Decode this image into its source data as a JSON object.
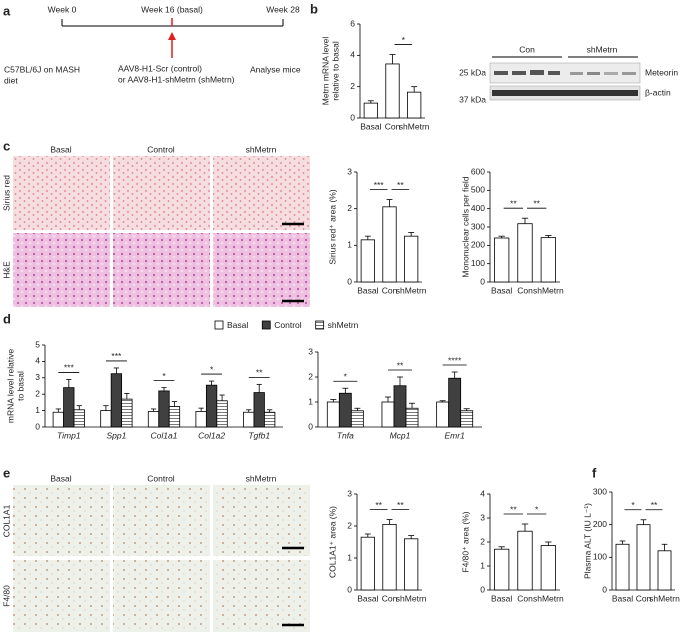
{
  "panels": [
    "a",
    "b",
    "c",
    "d",
    "e",
    "f"
  ],
  "timeline": {
    "weeks": [
      "Week 0",
      "Week 16 (basal)",
      "Week 28"
    ],
    "diet": [
      "C57BL/6J on MASH",
      "diet"
    ],
    "treatment": [
      "AAV8-H1-Scr (control)",
      "or AAV8-H1-shMetrn (shMetrn)"
    ],
    "end": "Analyse mice"
  },
  "blot": {
    "groups": [
      "Con",
      "shMetrn"
    ],
    "proteins": [
      "Meteorin",
      "β-actin"
    ],
    "markers": [
      "25 kDa",
      "37 kDa"
    ]
  },
  "images_c": {
    "columns": [
      "Basal",
      "Control",
      "shMetrn"
    ],
    "rows": [
      "Sirius red",
      "H&E"
    ]
  },
  "images_e": {
    "columns": [
      "Basal",
      "Control",
      "shMetrn"
    ],
    "rows": [
      "COL1A1",
      "F4/80"
    ]
  },
  "chart_data": [
    {
      "type": "bar",
      "ylabel": [
        "Metrn mRNA level",
        "relative to basal"
      ],
      "categories": [
        "Basal",
        "Con",
        "shMetrn"
      ],
      "values": [
        0.95,
        3.45,
        1.65
      ],
      "errors": [
        0.15,
        0.6,
        0.35
      ],
      "color": "#ffffff",
      "ylim": [
        0,
        6
      ],
      "yticks": [
        0,
        2,
        4,
        6
      ],
      "significance": [
        {
          "label": "*",
          "pair": [
            "Con",
            "shMetrn"
          ]
        }
      ]
    },
    {
      "type": "bar",
      "ylabel": "Sirius red⁺ area (%)",
      "categories": [
        "Basal",
        "Con",
        "shMetrn"
      ],
      "values": [
        1.15,
        2.05,
        1.25
      ],
      "errors": [
        0.1,
        0.2,
        0.1
      ],
      "color": "#ffffff",
      "ylim": [
        0,
        3
      ],
      "yticks": [
        0,
        1,
        2,
        3
      ],
      "significance": [
        {
          "label": "***",
          "pair": [
            "Basal",
            "Con"
          ]
        },
        {
          "label": "**",
          "pair": [
            "Con",
            "shMetrn"
          ]
        }
      ]
    },
    {
      "type": "bar",
      "ylabel": "Mononuclear cells per field",
      "categories": [
        "Basal",
        "Con",
        "shMetrn"
      ],
      "values": [
        240,
        318,
        242
      ],
      "errors": [
        10,
        30,
        12
      ],
      "color": "#ffffff",
      "ylim": [
        0,
        600
      ],
      "yticks": [
        0,
        100,
        200,
        300,
        400,
        500,
        600
      ],
      "significance": [
        {
          "label": "**",
          "pair": [
            "Basal",
            "Con"
          ]
        },
        {
          "label": "**",
          "pair": [
            "Con",
            "shMetrn"
          ]
        }
      ]
    },
    {
      "type": "grouped_bar",
      "ylabel": [
        "mRNA level relative",
        "to basal"
      ],
      "categories": [
        "Timp1",
        "Spp1",
        "Col1a1",
        "Col1a2",
        "Tgfb1"
      ],
      "series": [
        {
          "name": "Basal",
          "color": "#ffffff",
          "values": [
            0.9,
            1.0,
            0.95,
            0.95,
            0.9
          ],
          "errors": [
            0.2,
            0.3,
            0.15,
            0.2,
            0.15
          ]
        },
        {
          "name": "Control",
          "color": "#404040",
          "values": [
            2.4,
            3.25,
            2.2,
            2.55,
            2.1
          ],
          "errors": [
            0.5,
            0.35,
            0.2,
            0.25,
            0.5
          ]
        },
        {
          "name": "shMetrn",
          "color": "#ffffff",
          "pattern": "stripes",
          "values": [
            1.05,
            1.7,
            1.25,
            1.6,
            0.9
          ],
          "errors": [
            0.25,
            0.35,
            0.3,
            0.35,
            0.15
          ]
        }
      ],
      "ylim": [
        0,
        5
      ],
      "yticks": [
        0,
        1,
        2,
        3,
        4,
        5
      ],
      "significance": [
        "***",
        "***",
        "*",
        "*",
        "**"
      ],
      "legend": "top"
    },
    {
      "type": "grouped_bar",
      "categories": [
        "Tnfa",
        "Mcp1",
        "Emr1"
      ],
      "series": [
        {
          "color": "#ffffff",
          "values": [
            1.0,
            1.0,
            1.0
          ],
          "errors": [
            0.1,
            0.2,
            0.05
          ]
        },
        {
          "color": "#404040",
          "values": [
            1.35,
            1.65,
            1.95
          ],
          "errors": [
            0.2,
            0.35,
            0.25
          ]
        },
        {
          "color": "#ffffff",
          "pattern": "stripes",
          "values": [
            0.65,
            0.75,
            0.65
          ],
          "errors": [
            0.1,
            0.2,
            0.08
          ]
        }
      ],
      "ylim": [
        0,
        3
      ],
      "yticks": [
        0,
        1,
        2,
        3
      ],
      "significance": [
        "*",
        "**",
        "****"
      ]
    },
    {
      "type": "bar",
      "ylabel": "COL1A1⁺ area (%)",
      "categories": [
        "Basal",
        "Con",
        "shMetrn"
      ],
      "values": [
        1.65,
        2.05,
        1.6
      ],
      "errors": [
        0.1,
        0.15,
        0.1
      ],
      "color": "#ffffff",
      "ylim": [
        0,
        3
      ],
      "yticks": [
        0,
        1,
        2,
        3
      ],
      "significance": [
        {
          "label": "**",
          "pair": [
            "Basal",
            "Con"
          ]
        },
        {
          "label": "**",
          "pair": [
            "Con",
            "shMetrn"
          ]
        }
      ]
    },
    {
      "type": "bar",
      "ylabel": "F4/80⁺ area (%)",
      "categories": [
        "Basal",
        "Con",
        "shMetrn"
      ],
      "values": [
        1.7,
        2.45,
        1.85
      ],
      "errors": [
        0.1,
        0.3,
        0.15
      ],
      "color": "#ffffff",
      "ylim": [
        0,
        4
      ],
      "yticks": [
        0,
        1,
        2,
        3,
        4
      ],
      "significance": [
        {
          "label": "**",
          "pair": [
            "Basal",
            "Con"
          ]
        },
        {
          "label": "*",
          "pair": [
            "Con",
            "shMetrn"
          ]
        }
      ]
    },
    {
      "type": "bar",
      "ylabel": "Plasma ALT (IU L⁻¹)",
      "categories": [
        "Basal",
        "Con",
        "shMetrn"
      ],
      "values": [
        140,
        200,
        120
      ],
      "errors": [
        10,
        15,
        20
      ],
      "color": "#ffffff",
      "ylim": [
        0,
        300
      ],
      "yticks": [
        0,
        100,
        200,
        300
      ],
      "significance": [
        {
          "label": "*",
          "pair": [
            "Basal",
            "Con"
          ]
        },
        {
          "label": "**",
          "pair": [
            "Con",
            "shMetrn"
          ]
        }
      ]
    }
  ]
}
